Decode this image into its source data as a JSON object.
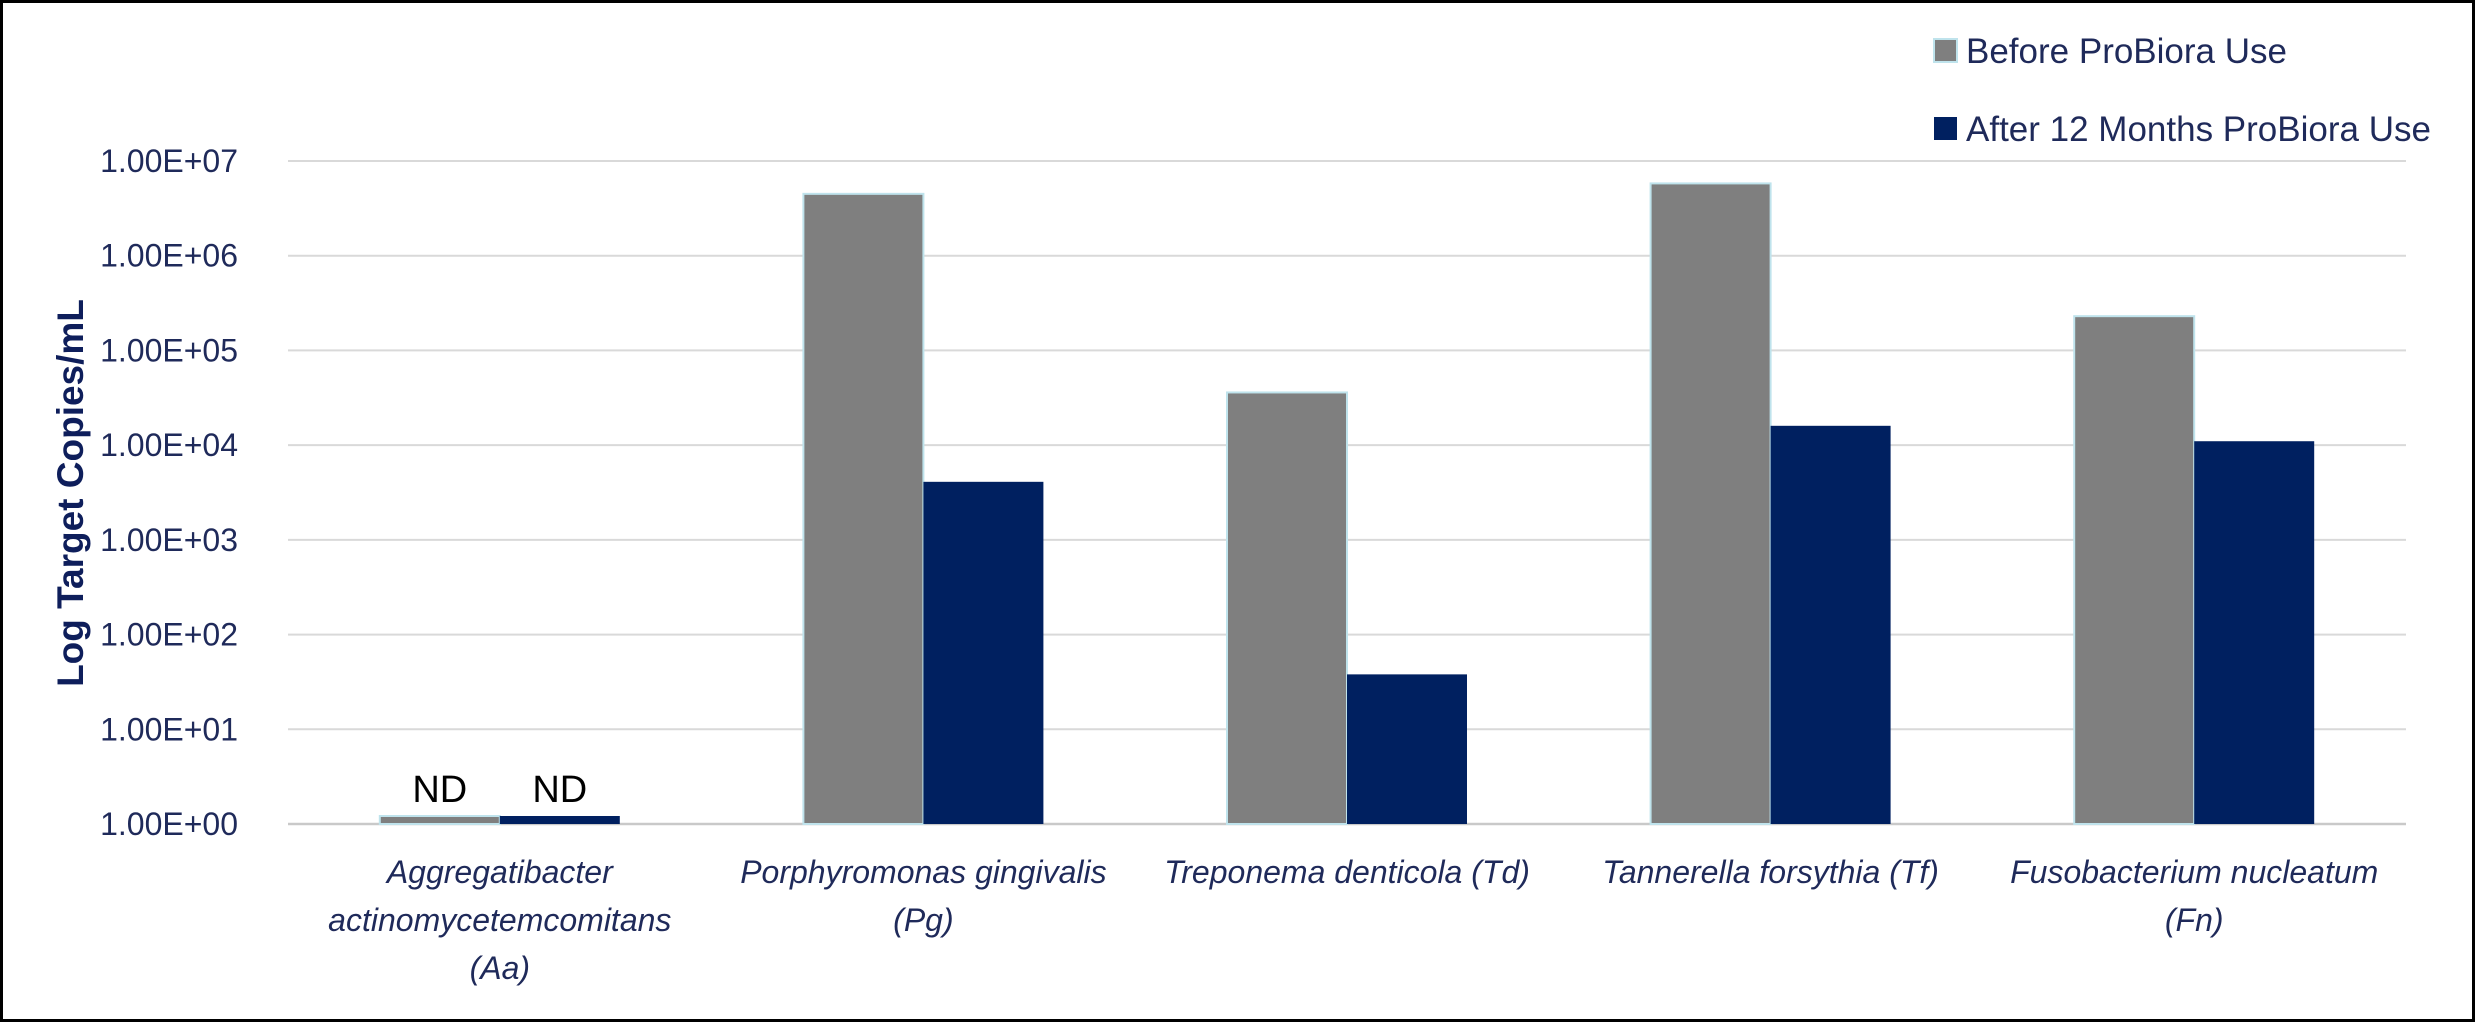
{
  "chart_data": {
    "type": "bar",
    "y_scale": "log",
    "ylabel": "Log Target Copies/mL",
    "xlabel": "",
    "ylim": [
      1,
      10000000
    ],
    "y_ticks": [
      "1.00E+00",
      "1.00E+01",
      "1.00E+02",
      "1.00E+03",
      "1.00E+04",
      "1.00E+05",
      "1.00E+06",
      "1.00E+07"
    ],
    "categories": [
      [
        "Aggregatibacter",
        "actinomycetemcomitans",
        "(Aa)"
      ],
      [
        "Porphyromonas gingivalis",
        "(Pg)"
      ],
      [
        "Treponema denticola (Td)"
      ],
      [
        "Tannerella forsythia (Tf)"
      ],
      [
        "Fusobacterium nucleatum",
        "(Fn)"
      ]
    ],
    "series": [
      {
        "name": "Before ProBiora Use",
        "color": "#7f7f7f",
        "values": [
          1,
          4500000,
          36000,
          5800000,
          230000
        ],
        "data_labels": [
          "ND",
          "",
          "",
          "",
          ""
        ]
      },
      {
        "name": "After 12 Months ProBiora Use",
        "color": "#002060",
        "values": [
          1,
          4100,
          38,
          16000,
          11000
        ],
        "data_labels": [
          "ND",
          "",
          "",
          "",
          ""
        ]
      }
    ],
    "grid": true,
    "legend_position": "top-right"
  }
}
